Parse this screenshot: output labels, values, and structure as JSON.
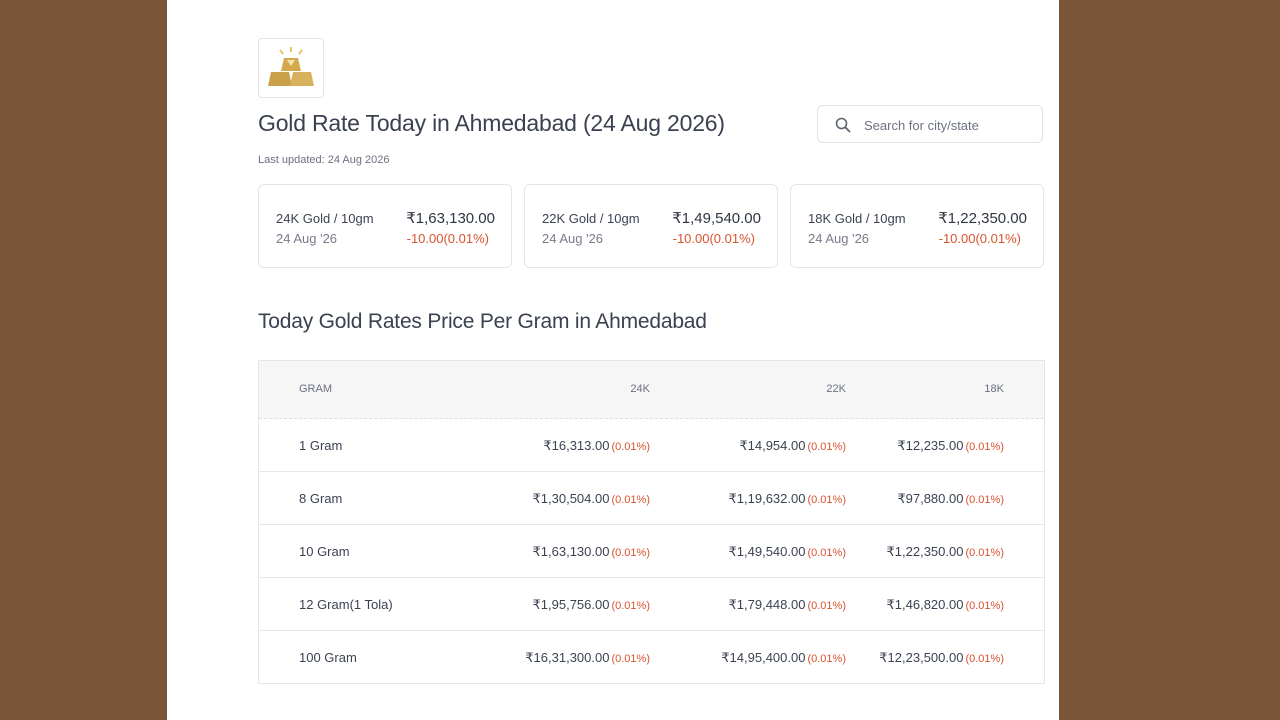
{
  "page": {
    "title": "Gold Rate Today in Ahmedabad (24 Aug 2026)",
    "last_updated": "Last updated: 24 Aug 2026"
  },
  "search": {
    "placeholder": "Search for city/state",
    "icon": "search-icon"
  },
  "cards": [
    {
      "label": "24K Gold / 10gm",
      "date": "24 Aug '26",
      "price": "₹1,63,130.00",
      "change": "-10.00(0.01%)"
    },
    {
      "label": "22K Gold / 10gm",
      "date": "24 Aug '26",
      "price": "₹1,49,540.00",
      "change": "-10.00(0.01%)"
    },
    {
      "label": "18K Gold / 10gm",
      "date": "24 Aug '26",
      "price": "₹1,22,350.00",
      "change": "-10.00(0.01%)"
    }
  ],
  "table": {
    "title": "Today Gold Rates Price Per Gram in Ahmedabad",
    "headers": {
      "gram": "GRAM",
      "k24": "24K",
      "k22": "22K",
      "k18": "18K"
    },
    "rows": [
      {
        "gram": "1 Gram",
        "k24": "₹16,313.00",
        "k24_pct": "(0.01%)",
        "k22": "₹14,954.00",
        "k22_pct": "(0.01%)",
        "k18": "₹12,235.00",
        "k18_pct": "(0.01%)"
      },
      {
        "gram": "8 Gram",
        "k24": "₹1,30,504.00",
        "k24_pct": "(0.01%)",
        "k22": "₹1,19,632.00",
        "k22_pct": "(0.01%)",
        "k18": "₹97,880.00",
        "k18_pct": "(0.01%)"
      },
      {
        "gram": "10 Gram",
        "k24": "₹1,63,130.00",
        "k24_pct": "(0.01%)",
        "k22": "₹1,49,540.00",
        "k22_pct": "(0.01%)",
        "k18": "₹1,22,350.00",
        "k18_pct": "(0.01%)"
      },
      {
        "gram": "12 Gram(1 Tola)",
        "k24": "₹1,95,756.00",
        "k24_pct": "(0.01%)",
        "k22": "₹1,79,448.00",
        "k22_pct": "(0.01%)",
        "k18": "₹1,46,820.00",
        "k18_pct": "(0.01%)"
      },
      {
        "gram": "100 Gram",
        "k24": "₹16,31,300.00",
        "k24_pct": "(0.01%)",
        "k22": "₹14,95,400.00",
        "k22_pct": "(0.01%)",
        "k18": "₹12,23,500.00",
        "k18_pct": "(0.01%)"
      }
    ]
  },
  "colors": {
    "background_outer": "#7a553a",
    "page": "#ffffff",
    "negative": "#d9532f",
    "gold": "#d4a94e"
  }
}
